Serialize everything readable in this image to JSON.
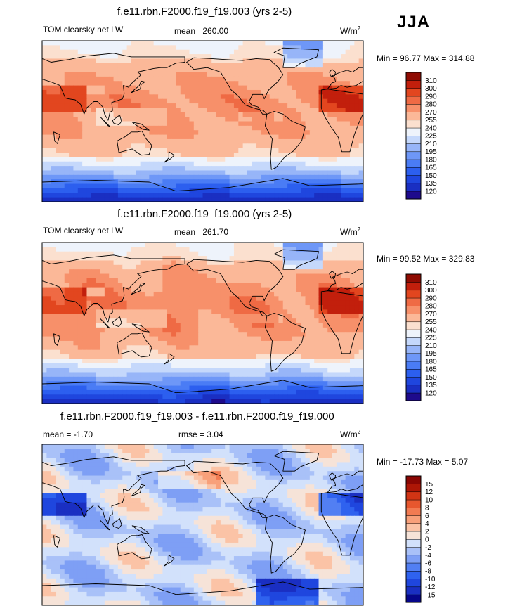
{
  "season": "JJA",
  "chart_data": [
    {
      "type": "heatmap",
      "title": "f.e11.rbn.F2000.f19_f19.003 (yrs 2-5)",
      "variable": "TOM clearsky net LW",
      "mean_text": "mean= 260.00",
      "units": "W/m",
      "units_exp": "2",
      "minmax_text": "Min =  96.77 Max = 314.88",
      "min": 96.77,
      "max": 314.88,
      "mean": 260.0,
      "levels": [
        120,
        135,
        150,
        165,
        180,
        195,
        210,
        225,
        240,
        255,
        270,
        280,
        290,
        300,
        310
      ],
      "colors": [
        "#1e0a8c",
        "#1a2fc2",
        "#1f46de",
        "#2c5fef",
        "#4a7cf5",
        "#6e97f7",
        "#97b5f8",
        "#c5d8fb",
        "#eef3fb",
        "#fbe0cf",
        "#fbb898",
        "#f7906a",
        "#ef6a44",
        "#e2461f",
        "#c21f0c",
        "#8f0b02"
      ]
    },
    {
      "type": "heatmap",
      "title": "f.e11.rbn.F2000.f19_f19.000 (yrs 2-5)",
      "variable": "TOM clearsky net LW",
      "mean_text": "mean= 261.70",
      "units": "W/m",
      "units_exp": "2",
      "minmax_text": "Min =  99.52 Max = 329.83",
      "min": 99.52,
      "max": 329.83,
      "mean": 261.7,
      "levels": [
        120,
        135,
        150,
        165,
        180,
        195,
        210,
        225,
        240,
        255,
        270,
        280,
        290,
        300,
        310
      ],
      "colors": [
        "#1e0a8c",
        "#1a2fc2",
        "#1f46de",
        "#2c5fef",
        "#4a7cf5",
        "#6e97f7",
        "#97b5f8",
        "#c5d8fb",
        "#eef3fb",
        "#fbe0cf",
        "#fbb898",
        "#f7906a",
        "#ef6a44",
        "#e2461f",
        "#c21f0c",
        "#8f0b02"
      ]
    },
    {
      "type": "heatmap",
      "title": "f.e11.rbn.F2000.f19_f19.003 - f.e11.rbn.F2000.f19_f19.000",
      "mean_text": "mean =  -1.70",
      "rmse_text": "rmse =   3.04",
      "units": "W/m",
      "units_exp": "2",
      "minmax_text": "Min = -17.73 Max =   5.07",
      "min": -17.73,
      "max": 5.07,
      "mean": -1.7,
      "rmse": 3.04,
      "levels": [
        -15,
        -12,
        -10,
        -8,
        -6,
        -4,
        -2,
        0,
        2,
        4,
        6,
        8,
        10,
        12,
        15
      ],
      "colors": [
        "#06068a",
        "#1a2fc2",
        "#1f46de",
        "#2f62ef",
        "#527ff3",
        "#7e9ff5",
        "#a9c1f8",
        "#d2e1fb",
        "#f6e3d8",
        "#fbc3a6",
        "#f8a07a",
        "#f27b52",
        "#e7572e",
        "#d13414",
        "#ad1606",
        "#8a0603"
      ]
    }
  ]
}
